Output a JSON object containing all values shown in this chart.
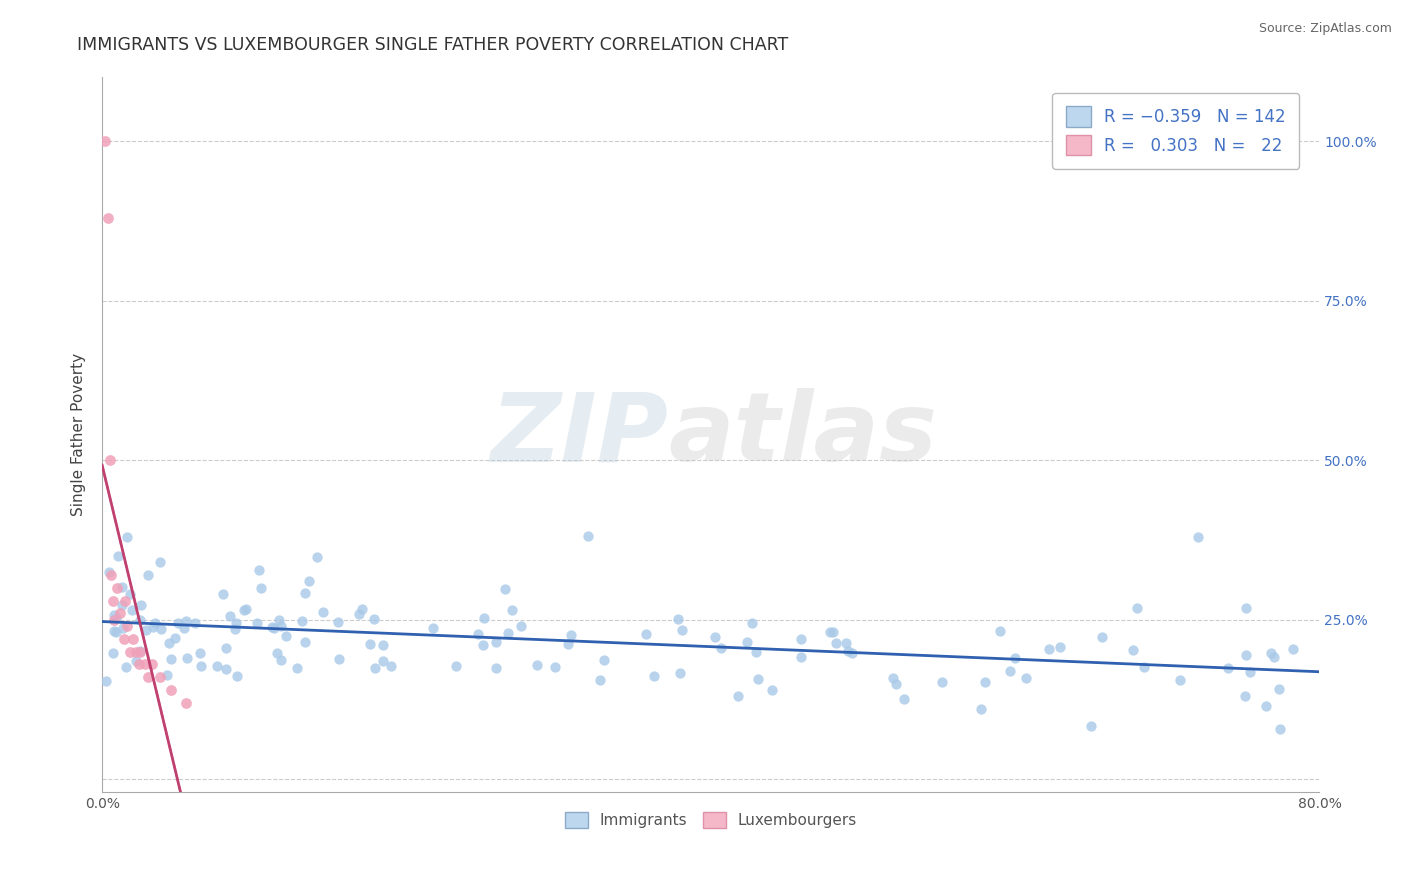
{
  "title": "IMMIGRANTS VS LUXEMBOURGER SINGLE FATHER POVERTY CORRELATION CHART",
  "source": "Source: ZipAtlas.com",
  "ylabel": "Single Father Poverty",
  "right_yticklabels": [
    "",
    "25.0%",
    "50.0%",
    "75.0%",
    "100.0%"
  ],
  "xlim": [
    0.0,
    0.8
  ],
  "ylim": [
    -0.02,
    1.1
  ],
  "ytick_vals": [
    0.0,
    0.25,
    0.5,
    0.75,
    1.0
  ],
  "immigrants_R": -0.359,
  "immigrants_N": 142,
  "luxembourgers_R": 0.303,
  "luxembourgers_N": 22,
  "immigrants_color": "#A8C8E8",
  "luxembourgers_color": "#F0A0B8",
  "immigrants_line_color": "#3060B0",
  "luxembourgers_line_color": "#C04070",
  "legend_immigrants_fill": "#BDD7EE",
  "legend_luxembourgers_fill": "#F4B8C8",
  "background_color": "#FFFFFF",
  "grid_color": "#CCCCCC",
  "title_color": "#333333",
  "label_color": "#444444",
  "tick_color": "#555555",
  "seed_imm": 42,
  "seed_lux": 77
}
